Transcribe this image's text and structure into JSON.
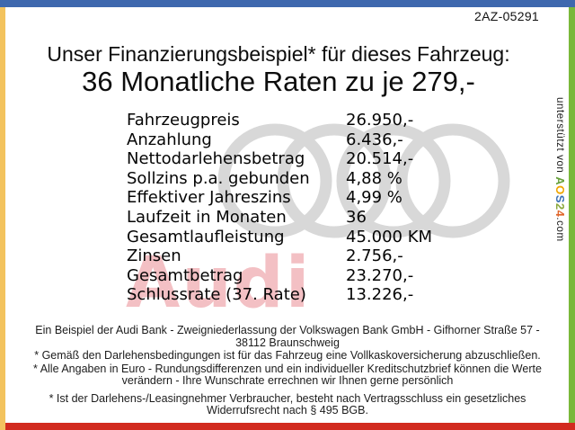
{
  "page": {
    "reference_code": "2AZ-05291"
  },
  "header": {
    "title_line1": "Unser Finanzierungsbeispiel* für dieses Fahrzeug:",
    "title_line2": "36 Monatliche Raten zu je 279,-"
  },
  "financing_table": {
    "rows": [
      {
        "label": "Fahrzeugpreis",
        "value": "26.950,-"
      },
      {
        "label": "Anzahlung",
        "value": "6.436,-"
      },
      {
        "label": "Nettodarlehensbetrag",
        "value": "20.514,-"
      },
      {
        "label": "Sollzins p.a. gebunden",
        "value": "4,88 %"
      },
      {
        "label": "Effektiver Jahreszins",
        "value": "4,99 %"
      },
      {
        "label": "Laufzeit in Monaten",
        "value": "36"
      },
      {
        "label": "Gesamtlaufleistung",
        "value": "45.000 KM"
      },
      {
        "label": "Zinsen",
        "value": "2.756,-"
      },
      {
        "label": "Gesamtbetrag",
        "value": "23.270,-"
      },
      {
        "label": "Schlussrate (37. Rate)",
        "value": "13.226,-"
      }
    ]
  },
  "watermarks": {
    "brand_text": "Audi",
    "brand_text_color": "#f3c0c4",
    "rings_color": "#d8d8d8"
  },
  "support_banner": {
    "prefix": "unterstützt von ",
    "logo_letters": [
      {
        "char": "A",
        "color": "#66a03a"
      },
      {
        "char": "O",
        "color": "#f0a500"
      },
      {
        "char": "S",
        "color": "#3a6fb5"
      },
      {
        "char": "2",
        "color": "#8aa83c"
      },
      {
        "char": "4",
        "color": "#e0652a"
      }
    ],
    "suffix": ".com"
  },
  "footer": {
    "paragraphs": [
      "Ein Beispiel der Audi Bank -  Zweigniederlassung der Volkswagen Bank GmbH - Gifhorner Straße 57 - 38112 Braunschweig",
      "* Gemäß den Darlehensbedingungen ist für das Fahrzeug eine Vollkaskoversicherung abzuschließen.",
      "* Alle Angaben in Euro - Rundungsdifferenzen und ein individueller Kreditschutzbrief können die Werte verändern - Ihre Wunschrate errechnen wir Ihnen gerne persönlich",
      "* Ist der Darlehens-/Leasingnehmer Verbraucher, besteht nach Vertragsschluss ein gesetzliches Widerrufsrecht nach § 495 BGB."
    ]
  },
  "frame_colors": {
    "top": "#3e68ae",
    "left": "#f3c35e",
    "right": "#7ab83a",
    "bottom": "#d22b1f"
  }
}
